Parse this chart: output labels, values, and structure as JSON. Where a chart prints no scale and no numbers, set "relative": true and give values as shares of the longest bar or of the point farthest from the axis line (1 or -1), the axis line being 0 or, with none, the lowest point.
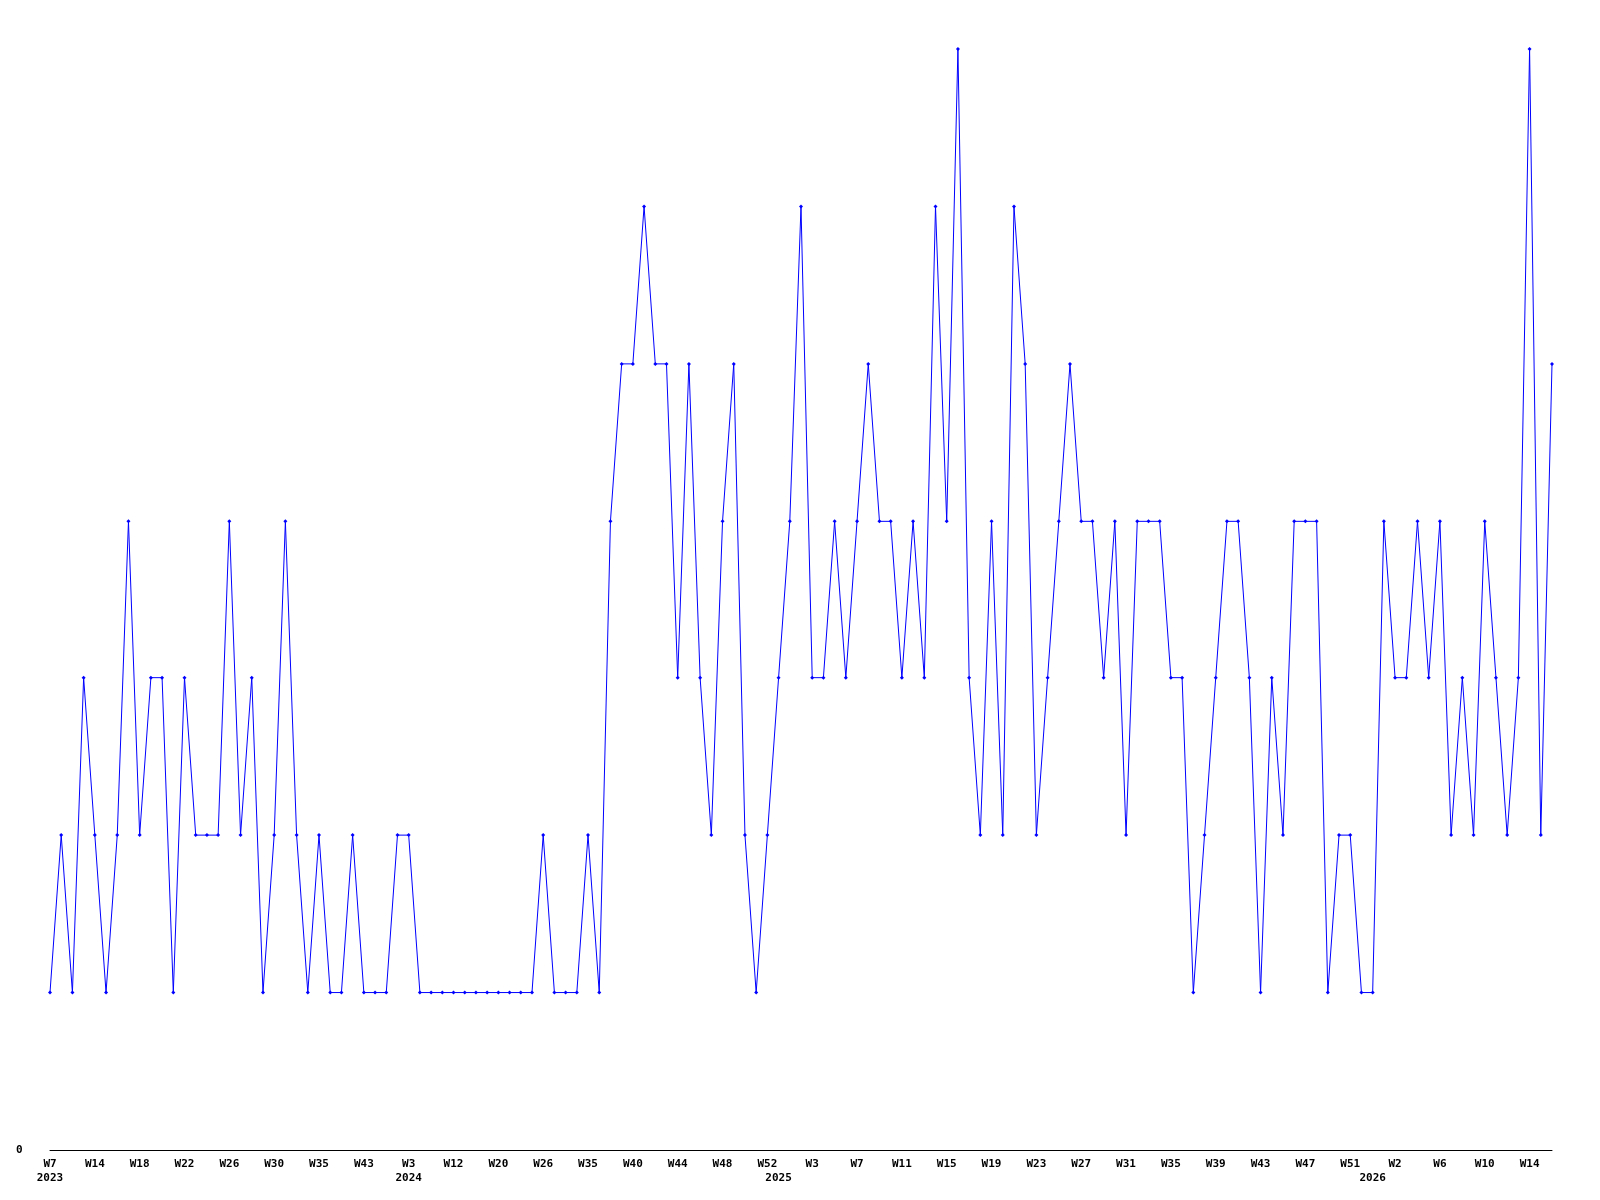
{
  "chart_data": {
    "type": "line",
    "relative": true,
    "color": "#0000ff",
    "marker": "diamond",
    "line_style": "solid",
    "grid": false,
    "annotations": [
      "0"
    ],
    "categories": [
      "W7\n2023",
      null,
      null,
      null,
      "W14",
      null,
      null,
      null,
      "W18",
      null,
      null,
      null,
      "W22",
      null,
      null,
      null,
      "W26",
      null,
      null,
      null,
      "W30",
      null,
      null,
      null,
      "W35",
      null,
      null,
      null,
      "W43",
      null,
      null,
      null,
      "W3\n2024",
      null,
      null,
      null,
      "W12",
      null,
      null,
      null,
      "W20",
      null,
      null,
      null,
      "W26",
      null,
      null,
      null,
      "W35",
      null,
      null,
      null,
      "W40",
      null,
      null,
      null,
      "W44",
      null,
      null,
      null,
      "W48",
      null,
      null,
      null,
      "W52",
      "\n2025",
      null,
      null,
      "W3",
      null,
      null,
      null,
      "W7",
      null,
      null,
      null,
      "W11",
      null,
      null,
      null,
      "W15",
      null,
      null,
      null,
      "W19",
      null,
      null,
      null,
      "W23",
      null,
      null,
      null,
      "W27",
      null,
      null,
      null,
      "W31",
      null,
      null,
      null,
      "W35",
      null,
      null,
      null,
      "W39",
      null,
      null,
      null,
      "W43",
      null,
      null,
      null,
      "W47",
      null,
      null,
      null,
      "W51",
      null,
      "\n2026",
      null,
      "W2",
      null,
      null,
      null,
      "W6",
      null,
      null,
      null,
      "W10",
      null,
      null,
      null,
      "W14",
      null,
      null
    ],
    "values": [
      0.143,
      0.286,
      0.143,
      0.429,
      0.286,
      0.143,
      0.286,
      0.571,
      0.286,
      0.429,
      0.429,
      0.143,
      0.429,
      0.286,
      0.286,
      0.286,
      0.571,
      0.286,
      0.429,
      0.143,
      0.286,
      0.571,
      0.286,
      0.143,
      0.286,
      0.143,
      0.143,
      0.286,
      0.143,
      0.143,
      0.143,
      0.286,
      0.286,
      0.143,
      0.143,
      0.143,
      0.143,
      0.143,
      0.143,
      0.143,
      0.143,
      0.143,
      0.143,
      0.143,
      0.286,
      0.143,
      0.143,
      0.143,
      0.286,
      0.143,
      0.571,
      0.714,
      0.714,
      0.857,
      0.714,
      0.714,
      0.429,
      0.714,
      0.429,
      0.286,
      0.571,
      0.714,
      0.286,
      0.143,
      0.286,
      0.429,
      0.571,
      0.857,
      0.429,
      0.429,
      0.571,
      0.429,
      0.571,
      0.714,
      0.571,
      0.571,
      0.429,
      0.571,
      0.429,
      0.857,
      0.571,
      1,
      0.429,
      0.286,
      0.571,
      0.286,
      0.857,
      0.714,
      0.286,
      0.429,
      0.571,
      0.714,
      0.571,
      0.571,
      0.429,
      0.571,
      0.286,
      0.571,
      0.571,
      0.571,
      0.429,
      0.429,
      0.143,
      0.286,
      0.429,
      0.571,
      0.571,
      0.429,
      0.143,
      0.429,
      0.286,
      0.571,
      0.571,
      0.571,
      0.143,
      0.286,
      0.286,
      0.143,
      0.143,
      0.571,
      0.429,
      0.429,
      0.571,
      0.429,
      0.571,
      0.286,
      0.429,
      0.286,
      0.571,
      0.429,
      0.286,
      0.429,
      1,
      0.286,
      0.714
    ]
  }
}
